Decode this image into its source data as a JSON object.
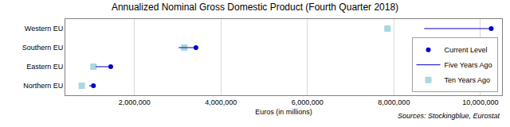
{
  "chart_data": {
    "type": "range_dot",
    "orientation": "horizontal",
    "title": "Annualized Nominal Gross Domestic Product (Fourth Quarter 2018)",
    "x_label": "Euros (in millions)",
    "annotations": [
      "Sources: Stockingblue, Eurostat"
    ],
    "categories": [
      "Western EU",
      "Southern EU",
      "Eastern EU",
      "Northern EU"
    ],
    "series": [
      {
        "name": "Current Level",
        "color": "#0000cc",
        "marker": "circle",
        "values": [
          10250000,
          3420000,
          1450000,
          1050000
        ]
      },
      {
        "name": "Five Years Ago",
        "color": "#0000cc",
        "line_style": "solid",
        "values": [
          8700000,
          3020000,
          1100000,
          950000
        ]
      },
      {
        "name": "Ten Years Ago",
        "color": "#a8d8e0",
        "marker": "square",
        "values": [
          7850000,
          3150000,
          1050000,
          780000
        ]
      }
    ],
    "xlim": [
      400000,
      10500000
    ],
    "xticks": [
      {
        "value": 2000000,
        "label": "2,000,000"
      },
      {
        "value": 4000000,
        "label": "4,000,000"
      },
      {
        "value": 6000000,
        "label": "6,000,000"
      },
      {
        "value": 8000000,
        "label": "8,000,000"
      },
      {
        "value": 10000000,
        "label": "10,000,000"
      }
    ],
    "grid": true,
    "legend": "bottom right"
  }
}
